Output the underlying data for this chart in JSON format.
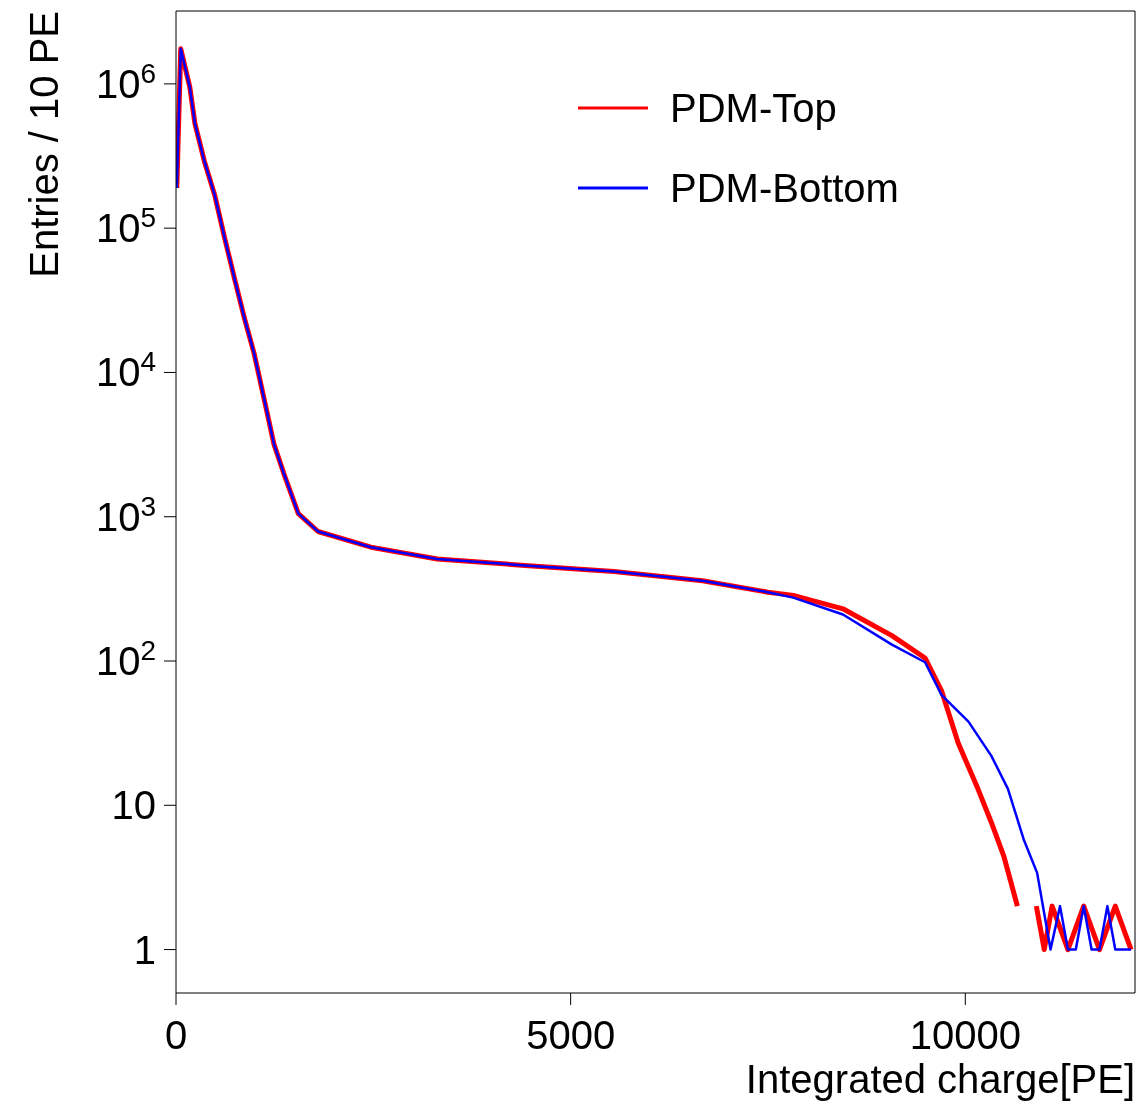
{
  "chart_data": {
    "type": "line",
    "xlabel": "Integrated charge[PE]",
    "ylabel": "Entries / 10 PE",
    "log": true,
    "legend": "top right",
    "xlim": [
      0,
      12150
    ],
    "xticks": [
      0,
      5000,
      10000
    ],
    "ylim": [
      0.5,
      3200000
    ],
    "yticks": [
      1,
      10,
      {
        "value": 100,
        "label": "10$^{2}$"
      },
      {
        "value": 1000,
        "label": "10$^{3}$"
      },
      {
        "value": 10000,
        "label": "10$^{4}$"
      },
      {
        "value": 100000,
        "label": "10$^{5}$"
      },
      {
        "value": 1000000,
        "label": "10$^{6}$"
      }
    ],
    "series": [
      {
        "name": "PDM-Top",
        "color": "#ff0000",
        "x": [
          10,
          60,
          175,
          240,
          360,
          490,
          615,
          740,
          865,
          990,
          1115,
          1240,
          1365,
          1550,
          1800,
          2470,
          3310,
          4420,
          5550,
          6670,
          7500,
          7820,
          8450,
          9070,
          9490,
          9700,
          9910,
          10160,
          10330,
          10490,
          10660,
          10740,
          10900,
          11000,
          11100,
          11300,
          11500,
          11700,
          11900,
          12100
        ],
        "values": [
          190000,
          1750000,
          950000,
          530000,
          290000,
          170000,
          86000,
          45000,
          24000,
          13500,
          6600,
          3200,
          2000,
          1050,
          790,
          615,
          510,
          460,
          417,
          360,
          300,
          285,
          230,
          150,
          105,
          62,
          27,
          13,
          7.6,
          4.4,
          2,
          null,
          2,
          1,
          2,
          1,
          2,
          1,
          2,
          1
        ]
      },
      {
        "name": "PDM-Bottom",
        "color": "#0000ff",
        "x": [
          10,
          60,
          175,
          240,
          360,
          490,
          615,
          740,
          865,
          990,
          1115,
          1240,
          1365,
          1550,
          1800,
          2470,
          3310,
          4420,
          5550,
          6670,
          7500,
          7820,
          8450,
          9070,
          9490,
          9700,
          10040,
          10330,
          10540,
          10740,
          10910,
          11080,
          11200,
          11300,
          11400,
          11500,
          11600,
          11700,
          11800,
          11900,
          12000,
          12100
        ],
        "values": [
          190000,
          1750000,
          950000,
          530000,
          290000,
          170000,
          86000,
          45000,
          24000,
          13500,
          6600,
          3200,
          2000,
          1050,
          790,
          615,
          510,
          460,
          417,
          360,
          300,
          275,
          210,
          130,
          98,
          58,
          38,
          22,
          13,
          5.8,
          3.4,
          1,
          2,
          1,
          1,
          2,
          1,
          1,
          2,
          1,
          1,
          1
        ]
      }
    ]
  }
}
